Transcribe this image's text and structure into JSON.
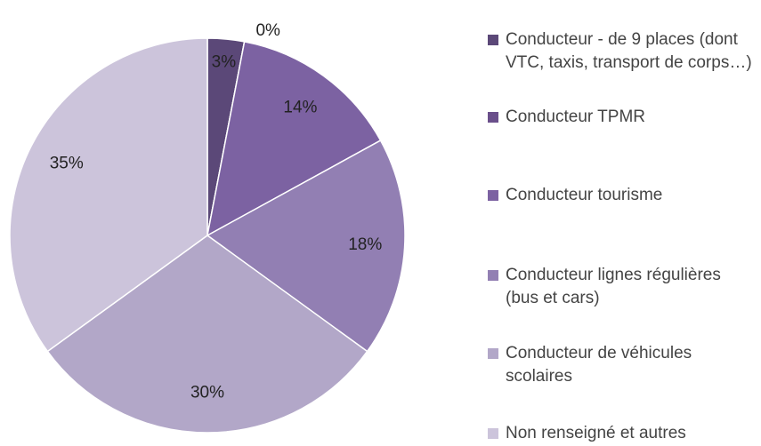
{
  "chart_data": {
    "type": "pie",
    "categories": [
      "Conducteur - de 9 places (dont VTC, taxis, transport de corps…)",
      "Conducteur TPMR",
      "Conducteur tourisme",
      "Conducteur lignes régulières (bus et cars)",
      "Conducteur de véhicules scolaires",
      "Non renseigné et autres"
    ],
    "values": [
      3,
      0,
      14,
      18,
      30,
      35
    ],
    "value_labels": [
      "3%",
      "0%",
      "14%",
      "18%",
      "30%",
      "35%"
    ],
    "colors": [
      "#5b4878",
      "#6a4f8b",
      "#7c62a2",
      "#927fb3",
      "#b2a7c8",
      "#ccc4db"
    ],
    "legend": "right"
  }
}
